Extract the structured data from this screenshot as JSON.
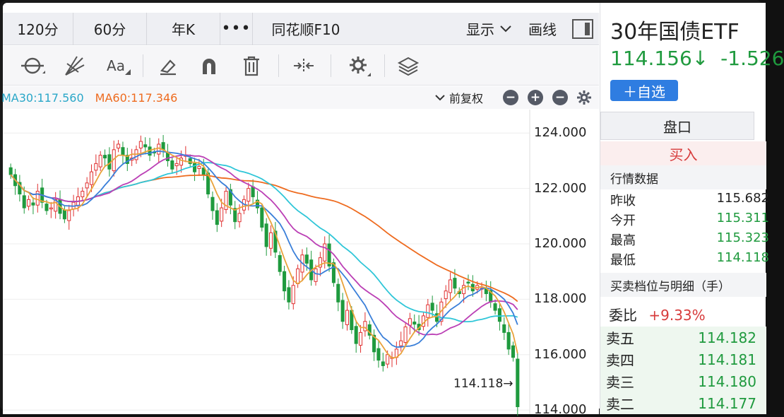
{
  "periods": [
    "120分",
    "60分",
    "年K",
    "•••",
    "同花顺F10"
  ],
  "header": {
    "display_label": "显示",
    "draw_label": "画线"
  },
  "ma": {
    "ma30": "MA30:117.560",
    "ma60": "MA60:117.346"
  },
  "fuquan_label": "前复权",
  "chart_data": {
    "type": "candlestick",
    "title": "",
    "xlabel": "",
    "ylabel": "",
    "ylim": [
      113.85,
      124.85
    ],
    "yticks": [
      "124.000",
      "122.000",
      "120.000",
      "118.000",
      "116.000",
      "114.000"
    ],
    "ytick_values": [
      124,
      122,
      120,
      118,
      116,
      114
    ],
    "last_price_label": "114.118→",
    "colors": {
      "up": "#e03030",
      "down": "#1f9a3e",
      "ma5": "#e9a23b",
      "ma10": "#3a7fd9",
      "ma20": "#bb3fb5",
      "ma30": "#2fc6d8",
      "ma60": "#ee6b1f"
    },
    "closes": [
      122.5,
      122.1,
      121.8,
      121.3,
      121.6,
      121.4,
      121.9,
      121.5,
      121.2,
      121.3,
      121.6,
      121.1,
      120.9,
      121.2,
      121.5,
      121.7,
      121.9,
      122.2,
      122.6,
      122.9,
      123.2,
      123.1,
      122.7,
      123.4,
      123.6,
      123.2,
      122.9,
      123.1,
      123.4,
      123.7,
      123.5,
      123.2,
      123.3,
      123.6,
      123.4,
      123.0,
      122.7,
      122.9,
      123.1,
      123.2,
      122.9,
      122.6,
      122.8,
      122.5,
      121.8,
      121.2,
      120.7,
      121.3,
      121.9,
      121.4,
      120.8,
      121.1,
      121.6,
      122.0,
      121.7,
      121.3,
      120.6,
      119.9,
      120.4,
      119.7,
      119.0,
      118.3,
      117.9,
      118.5,
      119.1,
      119.6,
      119.3,
      118.7,
      119.1,
      119.5,
      120.0,
      119.2,
      118.6,
      117.9,
      117.2,
      117.6,
      116.9,
      116.4,
      116.8,
      117.2,
      116.7,
      116.1,
      115.8,
      115.6,
      116.0,
      115.9,
      116.2,
      116.5,
      117.0,
      117.3,
      117.1,
      116.9,
      117.4,
      117.8,
      117.6,
      117.2,
      117.9,
      118.3,
      118.7,
      118.4,
      118.2,
      118.5,
      118.6,
      118.3,
      118.5,
      118.4,
      118.2,
      117.9,
      117.6,
      117.2,
      116.8,
      116.2,
      115.9,
      114.118
    ]
  },
  "sidebar": {
    "title": "30年国债ETF",
    "price": "114.156↓",
    "change": "-1.526",
    "add_label": "＋自选",
    "pankou_tab": "盘口",
    "buy_label": "买入",
    "market_head": "行情数据",
    "quotes": [
      {
        "k": "昨收",
        "v": "115.682"
      },
      {
        "k": "今开",
        "v": "115.311"
      },
      {
        "k": "最高",
        "v": "115.323"
      },
      {
        "k": "最低",
        "v": "114.118"
      }
    ],
    "depth_head": "买卖档位与明细（手）",
    "weibi_label": "委比",
    "weibi_value": "+9.33%",
    "asks": [
      {
        "k": "卖五",
        "v": "114.182"
      },
      {
        "k": "卖四",
        "v": "114.181"
      },
      {
        "k": "卖三",
        "v": "114.180"
      },
      {
        "k": "卖二",
        "v": "114.177"
      }
    ]
  }
}
